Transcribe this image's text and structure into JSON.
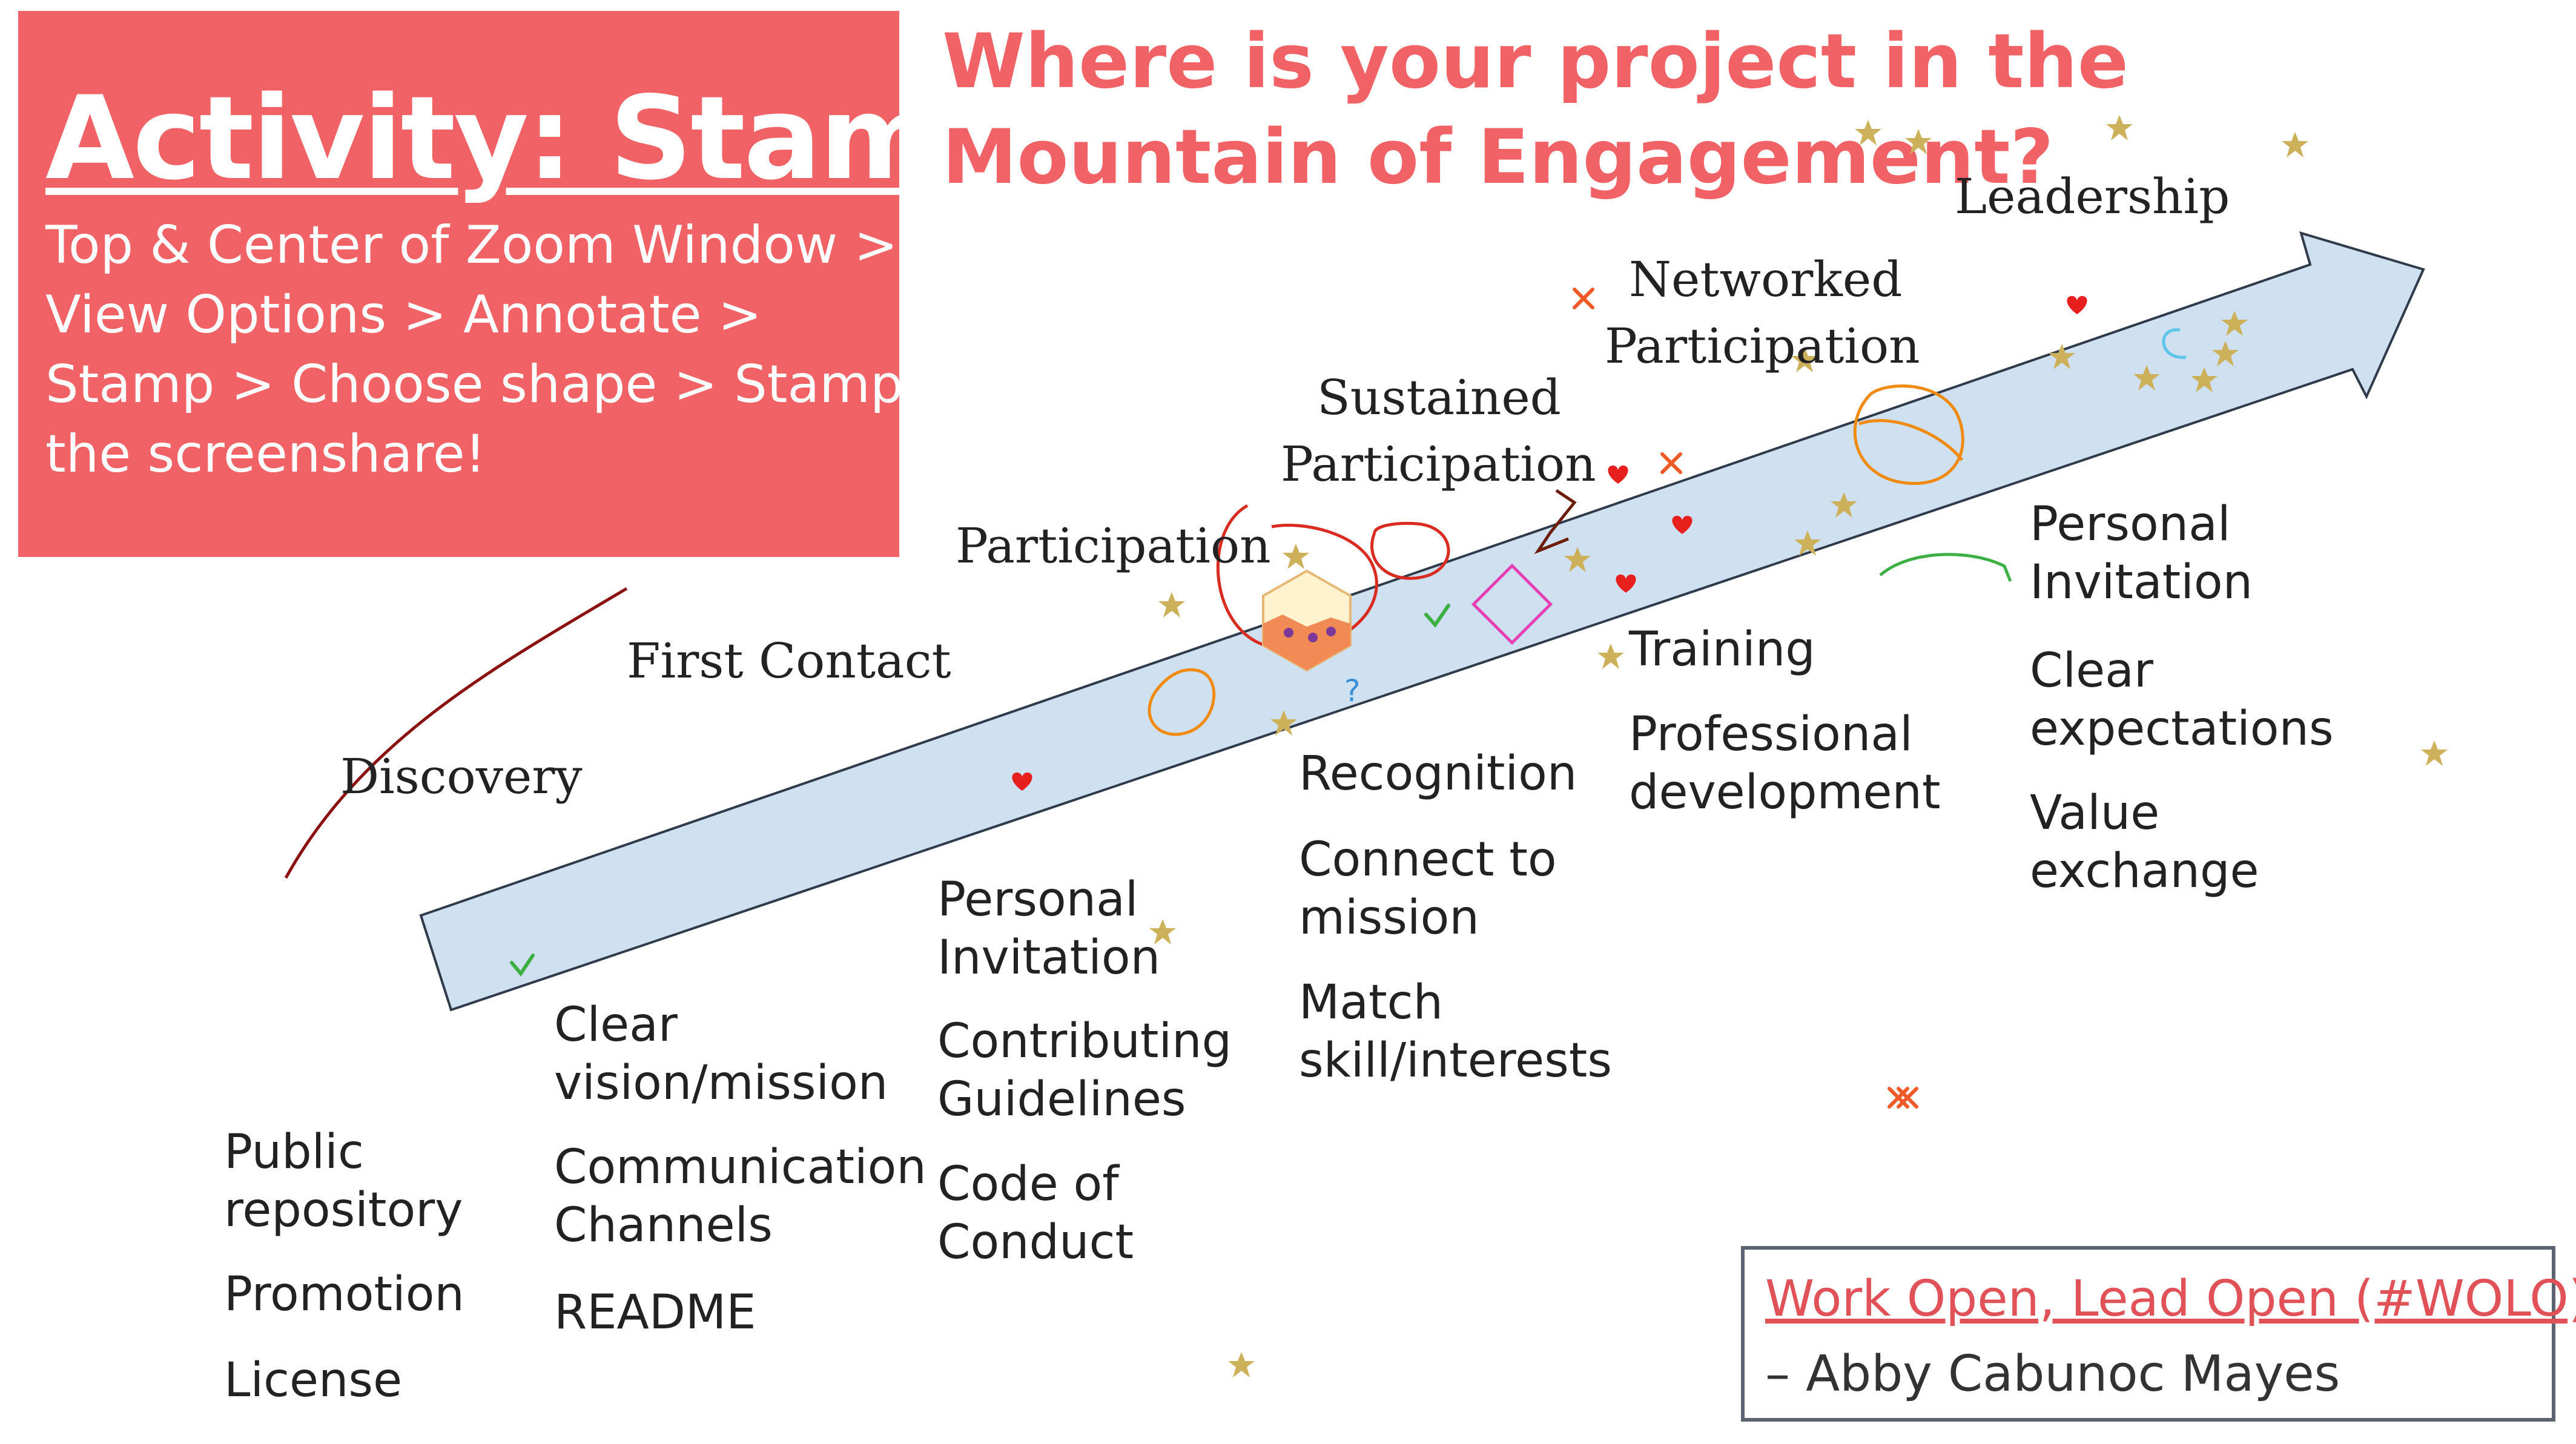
{
  "activity": {
    "title": "Activity: Stamp",
    "lines": [
      "Top & Center of Zoom Window >",
      "View Options > Annotate >",
      "Stamp > Choose shape > Stamp",
      "the screenshare!"
    ]
  },
  "heading": {
    "line1": "Where is your project in the",
    "line2": "Mountain of Engagement?"
  },
  "stages": {
    "discovery": "Discovery",
    "first_contact": "First Contact",
    "participation": "Participation",
    "sustained_1": "Sustained",
    "sustained_2": "Participation",
    "networked_1": "Networked",
    "networked_2": "Participation",
    "leadership": "Leadership"
  },
  "columns": {
    "discovery": [
      [
        "Public",
        "repository"
      ],
      [
        "Promotion"
      ],
      [
        "License"
      ]
    ],
    "first_contact": [
      [
        "Clear",
        "vision/mission"
      ],
      [
        "Communication",
        "Channels"
      ],
      [
        "README"
      ]
    ],
    "participation": [
      [
        "Personal",
        "Invitation"
      ],
      [
        "Contributing",
        "Guidelines"
      ],
      [
        "Code of",
        "Conduct"
      ]
    ],
    "sustained": [
      [
        "Recognition"
      ],
      [
        "Connect to",
        "mission"
      ],
      [
        "Match",
        "skill/interests"
      ]
    ],
    "networked": [
      [
        "Training"
      ],
      [
        "Professional",
        "development"
      ]
    ],
    "leadership": [
      [
        "Personal",
        "Invitation"
      ],
      [
        "Clear",
        "expectations"
      ],
      [
        "Value",
        "exchange"
      ]
    ]
  },
  "quote": {
    "link": "Work Open, Lead Open (#WOLO)",
    "author": "– Abby Cabunoc Mayes"
  },
  "stamp_logo": "openscapes",
  "colors": {
    "accent": "#f06265",
    "arrow_fill": "#cfe0f1",
    "arrow_stroke": "#2f3b4a",
    "star": "#cdb15a",
    "heart": "#e8201d",
    "cross": "#f05a28",
    "check": "#3cb043"
  }
}
